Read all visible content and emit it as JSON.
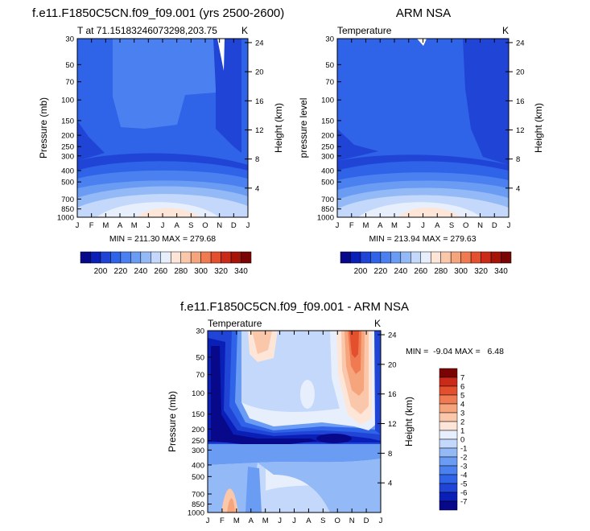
{
  "chart_data": [
    {
      "type": "heatmap",
      "id": "model",
      "title": "f.e11.F1850C5CN.f09_f09.001 (yrs 2500-2600)",
      "subtitle_left": "T at 71.15183246073298,203.75",
      "subtitle_right": "K",
      "ylabel": "Pressure (mb)",
      "ylabel_right": "Height (km)",
      "x_ticks": [
        "J",
        "F",
        "M",
        "A",
        "M",
        "J",
        "J",
        "A",
        "S",
        "O",
        "N",
        "D",
        "J"
      ],
      "y_ticks": [
        30,
        50,
        70,
        100,
        150,
        200,
        250,
        300,
        400,
        500,
        700,
        850,
        1000
      ],
      "y_ticks_right": [
        24,
        20,
        16,
        12,
        8,
        4
      ],
      "ylim": [
        30,
        1000
      ],
      "annotation": "MIN = 211.30 MAX = 279.68",
      "colorbar_labels": [
        "200",
        "220",
        "240",
        "260",
        "280",
        "300",
        "320",
        "340"
      ]
    },
    {
      "type": "heatmap",
      "id": "obs",
      "title": "ARM NSA",
      "subtitle_left": "Temperature",
      "subtitle_right": "K",
      "ylabel": "pressure level",
      "ylabel_right": "Height (km)",
      "x_ticks": [
        "J",
        "F",
        "M",
        "A",
        "M",
        "J",
        "J",
        "A",
        "S",
        "O",
        "N",
        "D",
        "J"
      ],
      "y_ticks": [
        30,
        50,
        70,
        100,
        150,
        200,
        250,
        300,
        400,
        500,
        700,
        850,
        1000
      ],
      "y_ticks_right": [
        24,
        20,
        16,
        12,
        8,
        4
      ],
      "ylim": [
        30,
        1000
      ],
      "annotation": "MIN = 213.94 MAX = 279.63",
      "colorbar_labels": [
        "200",
        "220",
        "240",
        "260",
        "280",
        "300",
        "320",
        "340"
      ]
    },
    {
      "type": "heatmap",
      "id": "diff",
      "title": "f.e11.F1850C5CN.f09_f09.001 - ARM NSA",
      "subtitle_left": "Temperature",
      "subtitle_right": "K",
      "ylabel": "Pressure (mb)",
      "ylabel_right": "Height (km)",
      "x_ticks": [
        "J",
        "F",
        "M",
        "A",
        "M",
        "J",
        "J",
        "A",
        "S",
        "O",
        "N",
        "D",
        "J"
      ],
      "y_ticks": [
        30,
        50,
        70,
        100,
        150,
        200,
        250,
        300,
        400,
        500,
        700,
        850,
        1000
      ],
      "y_ticks_right": [
        24,
        20,
        16,
        12,
        8,
        4
      ],
      "ylim": [
        30,
        1000
      ],
      "annotation": "MIN =  -9.04 MAX =   6.48",
      "colorbar_labels": [
        "7",
        "6",
        "5",
        "4",
        "3",
        "2",
        "1",
        "0",
        "-1",
        "-2",
        "-3",
        "-4",
        "-5",
        "-6",
        "-7"
      ]
    }
  ],
  "colors": {
    "abs_scale": [
      "#08088a",
      "#0a1fb8",
      "#1f44d6",
      "#2f63e8",
      "#4a80ef",
      "#6b9cf3",
      "#93b9f6",
      "#c3d8fa",
      "#e8effc",
      "#fde6d8",
      "#fac7ab",
      "#f6a47c",
      "#f07b52",
      "#e4502e",
      "#cc2a18",
      "#a51208",
      "#7a0404"
    ],
    "diff_scale": [
      "#08088a",
      "#0a1fb8",
      "#1f44d6",
      "#2f63e8",
      "#4a80ef",
      "#6b9cf3",
      "#93b9f6",
      "#c3d8fa",
      "#e8effc",
      "#fde6d8",
      "#fac7ab",
      "#f6a47c",
      "#f07b52",
      "#e4502e",
      "#cc2a18",
      "#7a0404"
    ]
  }
}
